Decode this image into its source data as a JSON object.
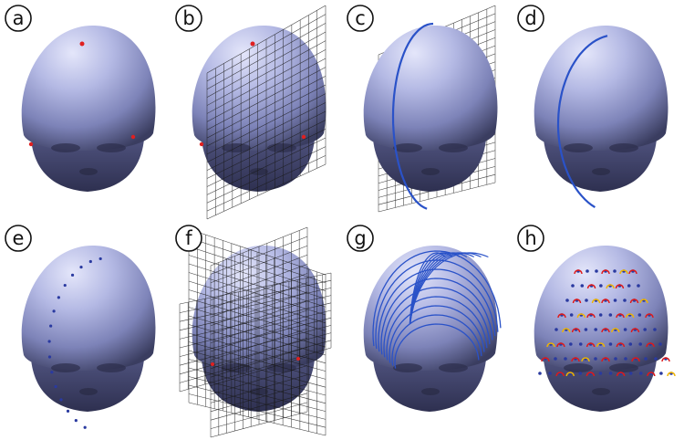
{
  "panels": [
    {
      "label": "a"
    },
    {
      "label": "b"
    },
    {
      "label": "c"
    },
    {
      "label": "d"
    },
    {
      "label": "e"
    },
    {
      "label": "f"
    },
    {
      "label": "g"
    },
    {
      "label": "h"
    }
  ],
  "colors": {
    "head_light": "#c9cdf0",
    "head_mid": "#8f95c8",
    "head_dark": "#3c3f63",
    "fiducial": "#e02020",
    "grid_line": "#1a1a1a",
    "contour": "#2a52c8",
    "electrode": "#2a3aa0",
    "ring_red": "#e01818",
    "ring_yellow": "#f0b400"
  }
}
